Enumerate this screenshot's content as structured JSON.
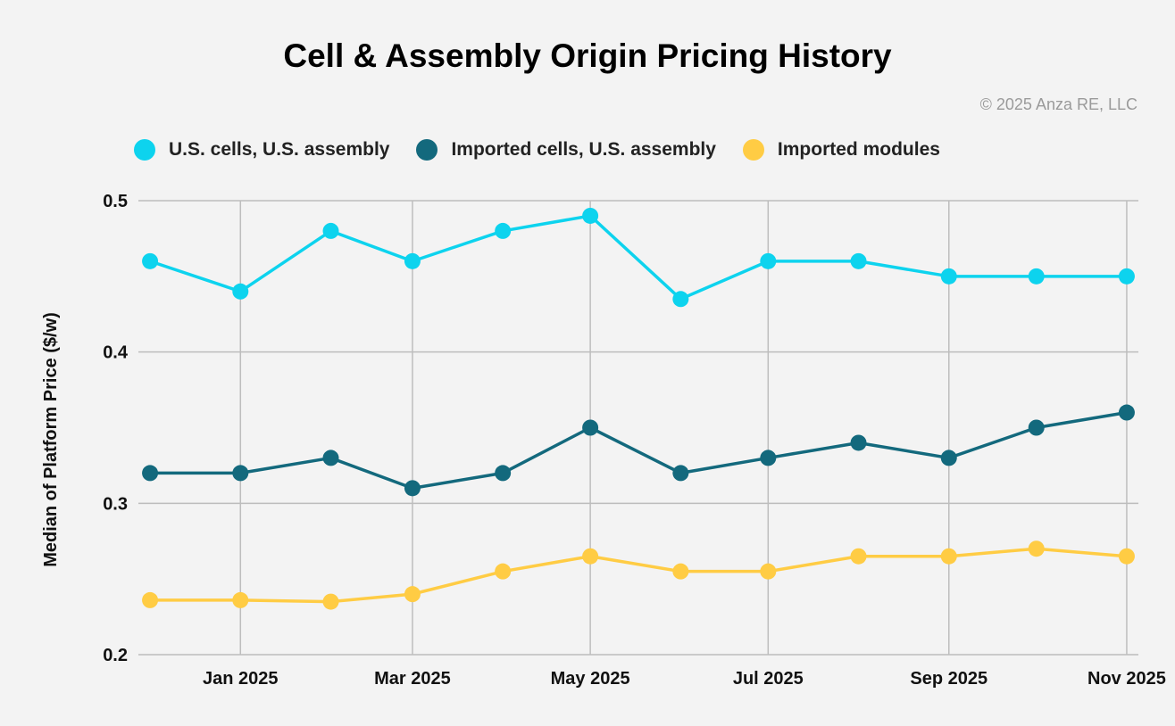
{
  "chart_data": {
    "type": "line",
    "title": "Cell & Assembly Origin Pricing History",
    "copyright": "© 2025 Anza RE, LLC",
    "xlabel": "",
    "ylabel": "Median of Platform Price ($/w)",
    "x": [
      "2024-12-01",
      "2025-01-01",
      "2025-02-01",
      "2025-03-01",
      "2025-04-01",
      "2025-05-01",
      "2025-06-01",
      "2025-07-01",
      "2025-08-01",
      "2025-09-01",
      "2025-10-01",
      "2025-11-01"
    ],
    "xlim": [
      "2024-11-27",
      "2025-11-05"
    ],
    "xticks": [
      {
        "date": "2025-01-01",
        "label": "Jan 2025"
      },
      {
        "date": "2025-03-01",
        "label": "Mar 2025"
      },
      {
        "date": "2025-05-01",
        "label": "May 2025"
      },
      {
        "date": "2025-07-01",
        "label": "Jul 2025"
      },
      {
        "date": "2025-09-01",
        "label": "Sep 2025"
      },
      {
        "date": "2025-11-01",
        "label": "Nov 2025"
      }
    ],
    "ylim": [
      0.2,
      0.5
    ],
    "yticks": [
      "0.2",
      "0.3",
      "0.4",
      "0.5"
    ],
    "grid": true,
    "legend_position": "top",
    "series": [
      {
        "name": "U.S. cells, U.S. assembly",
        "color": "#0dd3ee",
        "values": [
          0.46,
          0.44,
          0.48,
          0.46,
          0.48,
          0.49,
          0.435,
          0.46,
          0.46,
          0.45,
          0.45,
          0.45
        ]
      },
      {
        "name": "Imported cells, U.S. assembly",
        "color": "#13697d",
        "values": [
          0.32,
          0.32,
          0.33,
          0.31,
          0.32,
          0.35,
          0.32,
          0.33,
          0.34,
          0.33,
          0.35,
          0.36
        ]
      },
      {
        "name": "Imported modules",
        "color": "#ffcc44",
        "values": [
          0.236,
          0.236,
          0.235,
          0.24,
          0.255,
          0.265,
          0.255,
          0.255,
          0.265,
          0.265,
          0.27,
          0.265
        ]
      }
    ]
  }
}
